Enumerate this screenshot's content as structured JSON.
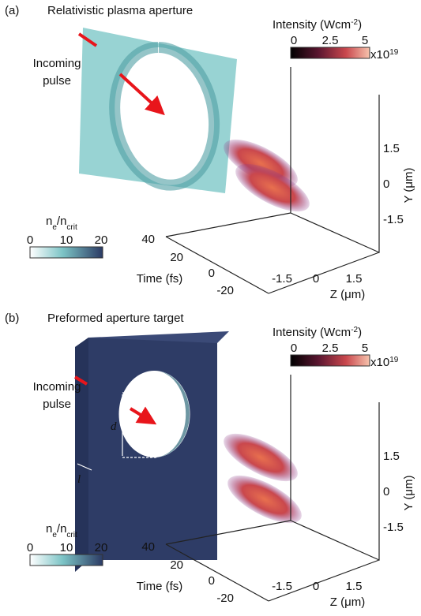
{
  "panels": [
    {
      "label": "(a)",
      "title": "Relativistic plasma aperture",
      "pulse_text": [
        "Incoming",
        "pulse"
      ],
      "intensity_bar": {
        "label": [
          "Intensity (Wcm",
          "-2",
          ")"
        ],
        "ticks": [
          "0",
          "2.5",
          "5"
        ],
        "multiplier": [
          "x10",
          "19"
        ]
      },
      "density_bar": {
        "label": [
          "n",
          "e",
          "/n",
          "crit"
        ],
        "ticks": [
          "0",
          "10",
          "20"
        ]
      },
      "y_axis": {
        "label": "Y (μm)",
        "ticks": [
          "1.5",
          "0",
          "-1.5"
        ]
      },
      "z_axis": {
        "label": "Z (μm)",
        "ticks": [
          "-1.5",
          "0",
          "1.5"
        ]
      },
      "time_axis": {
        "label": "Time (fs)",
        "ticks": [
          "40",
          "20",
          "0",
          "-20"
        ]
      }
    },
    {
      "label": "(b)",
      "title": "Preformed aperture target",
      "pulse_text": [
        "Incoming",
        "pulse"
      ],
      "intensity_bar": {
        "label": [
          "Intensity (Wcm",
          "-2",
          ")"
        ],
        "ticks": [
          "0",
          "2.5",
          "5"
        ],
        "multiplier": [
          "x10",
          "19"
        ]
      },
      "density_bar": {
        "label": [
          "n",
          "e",
          "/n",
          "crit"
        ],
        "ticks": [
          "0",
          "10",
          "20"
        ]
      },
      "y_axis": {
        "label": "Y (μm)",
        "ticks": [
          "1.5",
          "0",
          "-1.5"
        ]
      },
      "z_axis": {
        "label": "Z (μm)",
        "ticks": [
          "-1.5",
          "0",
          "1.5"
        ]
      },
      "time_axis": {
        "label": "Time (fs)",
        "ticks": [
          "40",
          "20",
          "0",
          "-20"
        ]
      },
      "diameter_label": "d",
      "thickness_label": "l"
    }
  ]
}
